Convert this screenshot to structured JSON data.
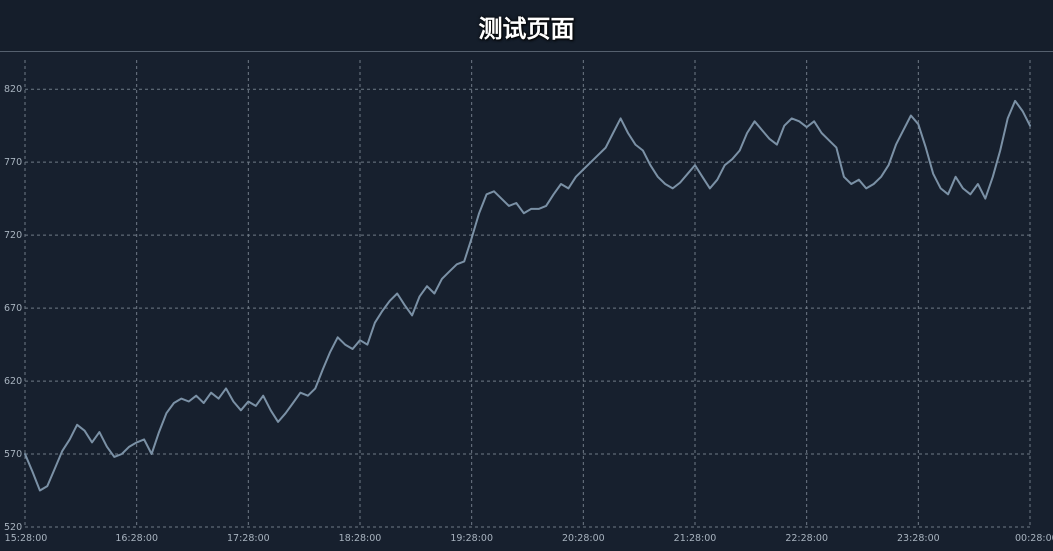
{
  "page": {
    "title": "测试页面"
  },
  "chart_data": {
    "type": "line",
    "title": "测试页面",
    "xlabel": "",
    "ylabel": "",
    "grid": true,
    "ylim": [
      520,
      840
    ],
    "yticks": [
      520,
      570,
      620,
      670,
      720,
      770,
      820
    ],
    "xticks": [
      "15:28:00",
      "16:28:00",
      "17:28:00",
      "18:28:00",
      "19:28:00",
      "20:28:00",
      "21:28:00",
      "22:28:00",
      "23:28:00",
      "00:28:00"
    ],
    "x_unit": "minutes after 15:28:00",
    "xlim": [
      0,
      540
    ],
    "series": [
      {
        "color": "#7b91a6",
        "x": [
          0,
          4,
          8,
          12,
          16,
          20,
          24,
          28,
          32,
          36,
          40,
          44,
          48,
          52,
          56,
          60,
          64,
          68,
          72,
          76,
          80,
          84,
          88,
          92,
          96,
          100,
          104,
          108,
          112,
          116,
          120,
          124,
          128,
          132,
          136,
          140,
          144,
          148,
          152,
          156,
          160,
          164,
          168,
          172,
          176,
          180,
          184,
          188,
          192,
          196,
          200,
          204,
          208,
          212,
          216,
          220,
          224,
          228,
          232,
          236,
          240,
          244,
          248,
          252,
          256,
          260,
          264,
          268,
          272,
          276,
          280,
          284,
          288,
          292,
          296,
          300,
          304,
          308,
          312,
          316,
          320,
          324,
          328,
          332,
          336,
          340,
          344,
          348,
          352,
          356,
          360,
          364,
          368,
          372,
          376,
          380,
          384,
          388,
          392,
          396,
          400,
          404,
          408,
          412,
          416,
          420,
          424,
          428,
          432,
          436,
          440,
          444,
          448,
          452,
          456,
          460,
          464,
          468,
          472,
          476,
          480,
          484,
          488,
          492,
          496,
          500,
          504,
          508,
          512,
          516,
          520,
          524,
          528,
          532,
          536,
          540
        ],
        "y": [
          570,
          558,
          545,
          548,
          560,
          572,
          580,
          590,
          586,
          578,
          585,
          575,
          568,
          570,
          575,
          578,
          580,
          570,
          585,
          598,
          605,
          608,
          606,
          610,
          605,
          612,
          608,
          615,
          606,
          600,
          606,
          603,
          610,
          600,
          592,
          598,
          605,
          612,
          610,
          615,
          628,
          640,
          650,
          645,
          642,
          648,
          645,
          660,
          668,
          675,
          680,
          672,
          665,
          678,
          685,
          680,
          690,
          695,
          700,
          702,
          718,
          735,
          748,
          750,
          745,
          740,
          742,
          735,
          738,
          738,
          740,
          748,
          755,
          752,
          760,
          765,
          770,
          775,
          780,
          790,
          800,
          790,
          782,
          778,
          768,
          760,
          755,
          752,
          756,
          762,
          768,
          760,
          752,
          758,
          768,
          772,
          778,
          790,
          798,
          792,
          786,
          782,
          795,
          800,
          798,
          794,
          798,
          790,
          785,
          780,
          760,
          755,
          758,
          752,
          755,
          760,
          768,
          782,
          792,
          802,
          796,
          780,
          762,
          752,
          748,
          760,
          752,
          748,
          755,
          745,
          760,
          778,
          800,
          812,
          805,
          795
        ]
      }
    ]
  }
}
